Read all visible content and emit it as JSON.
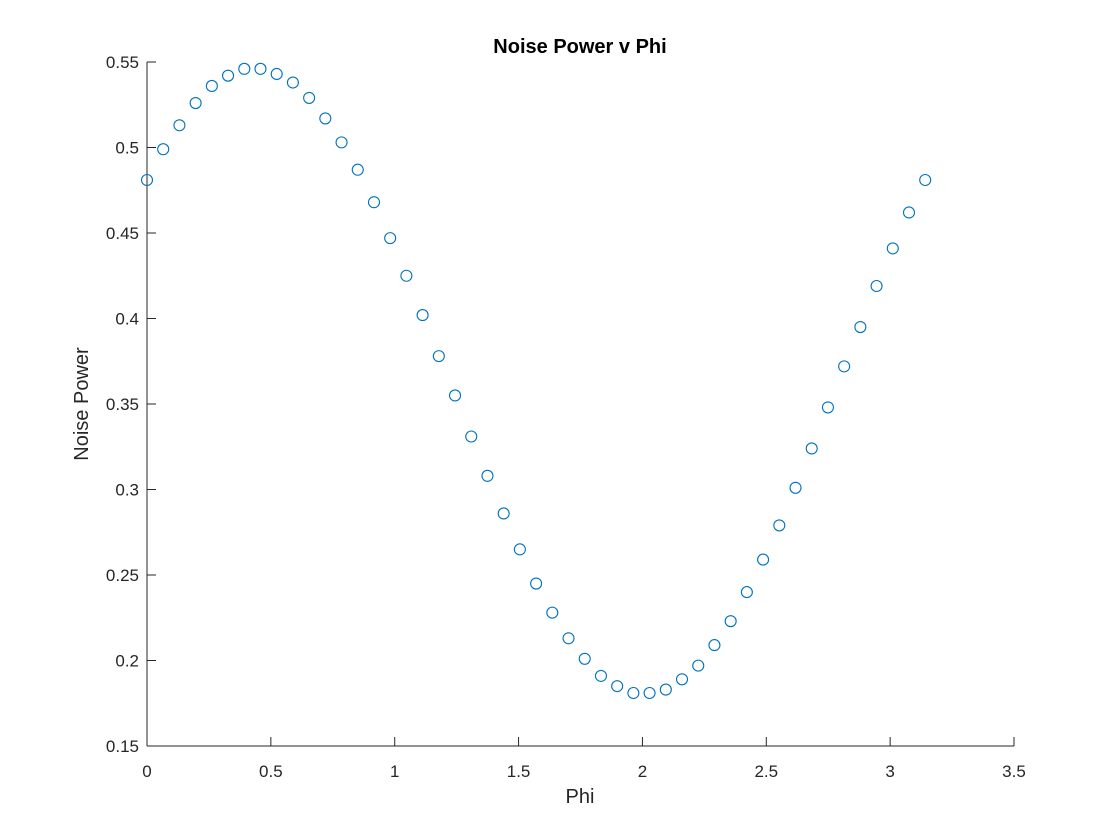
{
  "chart_data": {
    "type": "scatter",
    "title": "Noise Power v Phi",
    "xlabel": "Phi",
    "ylabel": "Noise Power",
    "xlim": [
      0,
      3.5
    ],
    "ylim": [
      0.15,
      0.55
    ],
    "xticks": [
      0,
      0.5,
      1,
      1.5,
      2,
      2.5,
      3,
      3.5
    ],
    "xtick_labels": [
      "0",
      "0.5",
      "1",
      "1.5",
      "2",
      "2.5",
      "3",
      "3.5"
    ],
    "yticks": [
      0.15,
      0.2,
      0.25,
      0.3,
      0.35,
      0.4,
      0.45,
      0.5,
      0.55
    ],
    "ytick_labels": [
      "0.15",
      "0.2",
      "0.25",
      "0.3",
      "0.35",
      "0.4",
      "0.45",
      "0.5",
      "0.55"
    ],
    "grid": false,
    "marker": "circle-open",
    "marker_color": "#0072BD",
    "series": [
      {
        "name": "Noise Power",
        "x": [
          0,
          0.0654,
          0.1309,
          0.1963,
          0.2618,
          0.3272,
          0.3927,
          0.4581,
          0.5236,
          0.589,
          0.6545,
          0.7199,
          0.7854,
          0.8508,
          0.9163,
          0.9817,
          1.0472,
          1.1126,
          1.1781,
          1.2435,
          1.309,
          1.3744,
          1.4399,
          1.5053,
          1.5708,
          1.6362,
          1.7017,
          1.7671,
          1.8326,
          1.898,
          1.9635,
          2.0289,
          2.0944,
          2.1598,
          2.2253,
          2.2907,
          2.3562,
          2.4216,
          2.4871,
          2.5525,
          2.618,
          2.6834,
          2.7489,
          2.8143,
          2.8798,
          2.9452,
          3.0107,
          3.0761,
          3.1416
        ],
        "y": [
          0.481,
          0.499,
          0.513,
          0.526,
          0.536,
          0.542,
          0.546,
          0.546,
          0.543,
          0.538,
          0.529,
          0.517,
          0.503,
          0.487,
          0.468,
          0.447,
          0.425,
          0.402,
          0.378,
          0.355,
          0.331,
          0.308,
          0.286,
          0.265,
          0.245,
          0.228,
          0.213,
          0.201,
          0.191,
          0.185,
          0.181,
          0.181,
          0.183,
          0.189,
          0.197,
          0.209,
          0.223,
          0.24,
          0.259,
          0.279,
          0.301,
          0.324,
          0.348,
          0.372,
          0.395,
          0.419,
          0.441,
          0.462,
          0.481
        ]
      }
    ]
  }
}
